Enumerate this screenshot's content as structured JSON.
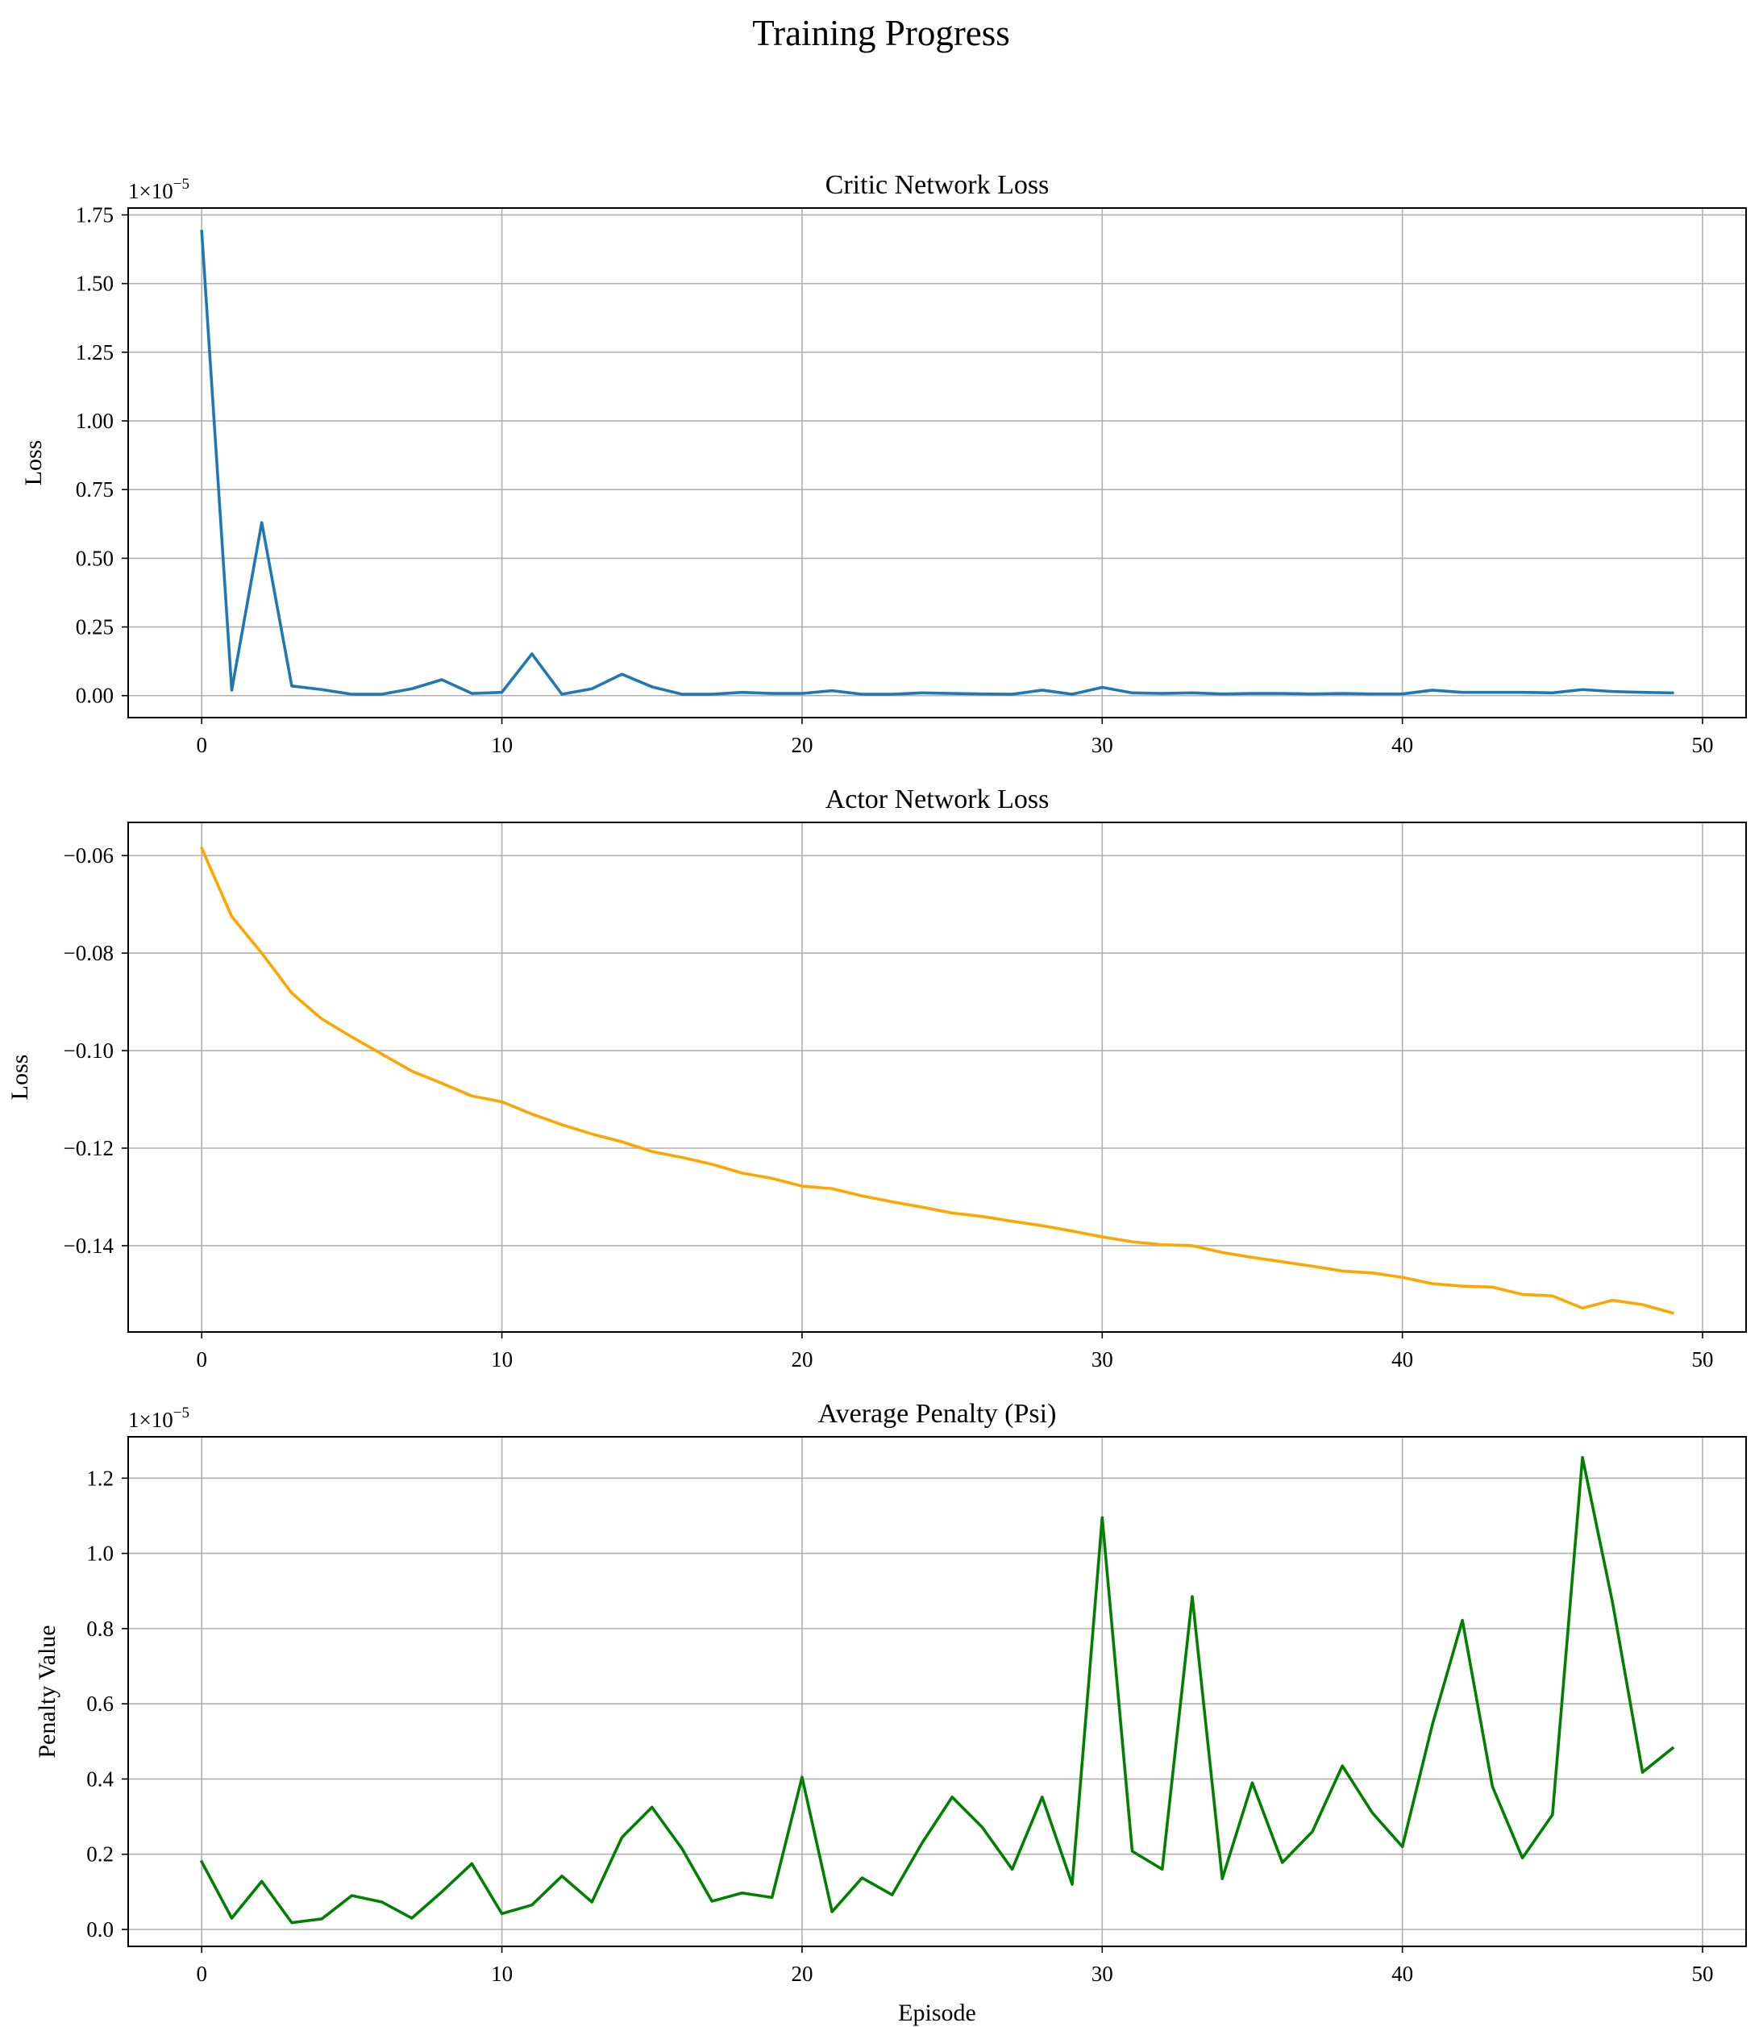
{
  "figure": {
    "title": "Training Progress"
  },
  "chart_data": [
    {
      "type": "line",
      "title": "Critic Network Loss",
      "xlabel": "",
      "ylabel": "Loss",
      "multiplier": "1×10",
      "multiplier_exp": "−5",
      "x": [
        0,
        1,
        2,
        3,
        4,
        5,
        6,
        7,
        8,
        9,
        10,
        11,
        12,
        13,
        14,
        15,
        16,
        17,
        18,
        19,
        20,
        21,
        22,
        23,
        24,
        25,
        26,
        27,
        28,
        29,
        30,
        31,
        32,
        33,
        34,
        35,
        36,
        37,
        38,
        39,
        40,
        41,
        42,
        43,
        44,
        45,
        46,
        47,
        48,
        49
      ],
      "series": [
        {
          "color": "#1f77b4",
          "values": [
            1.69,
            0.02,
            0.63,
            0.035,
            0.022,
            0.005,
            0.005,
            0.025,
            0.058,
            0.008,
            0.012,
            0.152,
            0.005,
            0.025,
            0.078,
            0.032,
            0.005,
            0.005,
            0.012,
            0.008,
            0.008,
            0.018,
            0.005,
            0.005,
            0.01,
            0.008,
            0.006,
            0.005,
            0.02,
            0.005,
            0.03,
            0.01,
            0.008,
            0.01,
            0.006,
            0.008,
            0.008,
            0.006,
            0.008,
            0.006,
            0.006,
            0.02,
            0.012,
            0.012,
            0.012,
            0.01,
            0.022,
            0.015,
            0.012,
            0.01
          ]
        }
      ],
      "xlim": [
        -2.45,
        51.45
      ],
      "ylim": [
        -0.08,
        1.775
      ],
      "xticks": [
        0,
        10,
        20,
        30,
        40,
        50
      ],
      "xtick_labels": [
        "0",
        "10",
        "20",
        "30",
        "40",
        "50"
      ],
      "yticks": [
        0,
        0.25,
        0.5,
        0.75,
        1.0,
        1.25,
        1.5,
        1.75
      ],
      "ytick_labels": [
        "0.00",
        "0.25",
        "0.50",
        "0.75",
        "1.00",
        "1.25",
        "1.50",
        "1.75"
      ],
      "grid": true
    },
    {
      "type": "line",
      "title": "Actor Network Loss",
      "xlabel": "",
      "ylabel": "Loss",
      "x": [
        0,
        1,
        2,
        3,
        4,
        5,
        6,
        7,
        8,
        9,
        10,
        11,
        12,
        13,
        14,
        15,
        16,
        17,
        18,
        19,
        20,
        21,
        22,
        23,
        24,
        25,
        26,
        27,
        28,
        29,
        30,
        31,
        32,
        33,
        34,
        35,
        36,
        37,
        38,
        39,
        40,
        41,
        42,
        43,
        44,
        45,
        46,
        47,
        48,
        49
      ],
      "series": [
        {
          "color": "#ffa500",
          "values": [
            -0.0585,
            -0.0725,
            -0.08,
            -0.0882,
            -0.0935,
            -0.0972,
            -0.1007,
            -0.1042,
            -0.1067,
            -0.1093,
            -0.1105,
            -0.113,
            -0.1152,
            -0.1171,
            -0.1187,
            -0.1207,
            -0.1219,
            -0.1233,
            -0.1251,
            -0.1262,
            -0.1278,
            -0.1283,
            -0.1298,
            -0.131,
            -0.1321,
            -0.1333,
            -0.134,
            -0.135,
            -0.1359,
            -0.137,
            -0.1382,
            -0.1392,
            -0.1398,
            -0.14,
            -0.1414,
            -0.1424,
            -0.1433,
            -0.1442,
            -0.1452,
            -0.1456,
            -0.1465,
            -0.1478,
            -0.1483,
            -0.1485,
            -0.15,
            -0.1503,
            -0.1528,
            -0.1512,
            -0.1521,
            -0.1538
          ]
        }
      ],
      "xlim": [
        -2.45,
        51.45
      ],
      "ylim": [
        -0.1577,
        -0.0532
      ],
      "xticks": [
        0,
        10,
        20,
        30,
        40,
        50
      ],
      "xtick_labels": [
        "0",
        "10",
        "20",
        "30",
        "40",
        "50"
      ],
      "yticks": [
        -0.06,
        -0.08,
        -0.1,
        -0.12,
        -0.14
      ],
      "ytick_labels": [
        "−0.06",
        "−0.08",
        "−0.10",
        "−0.12",
        "−0.14"
      ],
      "grid": true
    },
    {
      "type": "line",
      "title": "Average Penalty (Psi)",
      "xlabel": "Episode",
      "ylabel": "Penalty Value",
      "multiplier": "1×10",
      "multiplier_exp": "−5",
      "x": [
        0,
        1,
        2,
        3,
        4,
        5,
        6,
        7,
        8,
        9,
        10,
        11,
        12,
        13,
        14,
        15,
        16,
        17,
        18,
        19,
        20,
        21,
        22,
        23,
        24,
        25,
        26,
        27,
        28,
        29,
        30,
        31,
        32,
        33,
        34,
        35,
        36,
        37,
        38,
        39,
        40,
        41,
        42,
        43,
        44,
        45,
        46,
        47,
        48,
        49
      ],
      "series": [
        {
          "color": "#008000",
          "values": [
            0.18,
            0.03,
            0.128,
            0.018,
            0.028,
            0.09,
            0.073,
            0.03,
            0.1,
            0.175,
            0.042,
            0.065,
            0.142,
            0.073,
            0.245,
            0.325,
            0.215,
            0.075,
            0.097,
            0.085,
            0.405,
            0.047,
            0.137,
            0.092,
            0.23,
            0.352,
            0.272,
            0.16,
            0.352,
            0.12,
            1.095,
            0.208,
            0.16,
            0.885,
            0.135,
            0.39,
            0.178,
            0.26,
            0.435,
            0.31,
            0.22,
            0.545,
            0.822,
            0.38,
            0.19,
            0.305,
            1.255,
            0.87,
            0.418,
            0.482
          ]
        }
      ],
      "xlim": [
        -2.45,
        51.45
      ],
      "ylim": [
        -0.045,
        1.31
      ],
      "xticks": [
        0,
        10,
        20,
        30,
        40,
        50
      ],
      "xtick_labels": [
        "0",
        "10",
        "20",
        "30",
        "40",
        "50"
      ],
      "yticks": [
        0,
        0.2,
        0.4,
        0.6,
        0.8,
        1.0,
        1.2
      ],
      "ytick_labels": [
        "0.0",
        "0.2",
        "0.4",
        "0.6",
        "0.8",
        "1.0",
        "1.2"
      ],
      "grid": true
    }
  ]
}
